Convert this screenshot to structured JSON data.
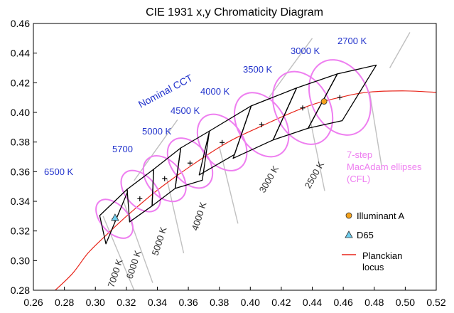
{
  "chart_data": {
    "type": "scatter",
    "title": "CIE 1931  x,y Chromaticity Diagram",
    "xlabel": "",
    "ylabel": "",
    "xlim": [
      0.26,
      0.52
    ],
    "ylim": [
      0.28,
      0.46
    ],
    "xticks": [
      "0.26",
      "0.28",
      "0.30",
      "0.32",
      "0.34",
      "0.36",
      "0.38",
      "0.40",
      "0.42",
      "0.44",
      "0.46",
      "0.48",
      "0.50",
      "0.52"
    ],
    "yticks": [
      "0.28",
      "0.30",
      "0.32",
      "0.34",
      "0.36",
      "0.38",
      "0.40",
      "0.42",
      "0.44",
      "0.46"
    ],
    "grid": false,
    "colors": {
      "frame": "#000000",
      "quadrangle": "#000000",
      "ellipse": "#ee7ef0",
      "planck": "#e8251a",
      "isotherm": "#c0c0c0",
      "label_blue": "#2233cc",
      "illuminant_a": "#f4a21c",
      "d65": "#6fd0f0"
    },
    "planckian_locus": [
      {
        "x": 0.2725,
        "y": 0.2785
      },
      {
        "x": 0.285,
        "y": 0.291
      },
      {
        "x": 0.2952,
        "y": 0.305
      },
      {
        "x": 0.3064,
        "y": 0.3166
      },
      {
        "x": 0.3221,
        "y": 0.3318
      },
      {
        "x": 0.3451,
        "y": 0.3516
      },
      {
        "x": 0.3805,
        "y": 0.3768
      },
      {
        "x": 0.405,
        "y": 0.3897
      },
      {
        "x": 0.4369,
        "y": 0.4041
      },
      {
        "x": 0.4599,
        "y": 0.4106
      },
      {
        "x": 0.477,
        "y": 0.4137
      },
      {
        "x": 0.5,
        "y": 0.4145
      },
      {
        "x": 0.52,
        "y": 0.4135
      }
    ],
    "nominal_cct": [
      {
        "label": "6500 K",
        "x": 0.3123,
        "y": 0.3282
      },
      {
        "label": "5700",
        "x": 0.3287,
        "y": 0.3417
      },
      {
        "label": "5000 K",
        "x": 0.3447,
        "y": 0.3553
      },
      {
        "label": "4500 K",
        "x": 0.3611,
        "y": 0.3658
      },
      {
        "label": "4000 K",
        "x": 0.3818,
        "y": 0.3797
      },
      {
        "label": "3500 K",
        "x": 0.4073,
        "y": 0.3917
      },
      {
        "label": "3000 K",
        "x": 0.4338,
        "y": 0.403
      },
      {
        "label": "2700 K",
        "x": 0.4578,
        "y": 0.4101
      }
    ],
    "quadrangles": [
      [
        [
          0.3028,
          0.3304
        ],
        [
          0.3205,
          0.3481
        ],
        [
          0.3207,
          0.3462
        ],
        [
          0.3068,
          0.3113
        ]
      ],
      [
        [
          0.3205,
          0.3481
        ],
        [
          0.3376,
          0.3616
        ],
        [
          0.3366,
          0.3369
        ],
        [
          0.3221,
          0.3261
        ]
      ],
      [
        [
          0.3376,
          0.3616
        ],
        [
          0.3551,
          0.376
        ],
        [
          0.3515,
          0.3487
        ],
        [
          0.3366,
          0.3369
        ]
      ],
      [
        [
          0.3551,
          0.376
        ],
        [
          0.3736,
          0.3874
        ],
        [
          0.369,
          0.3542
        ],
        [
          0.3515,
          0.3487
        ]
      ],
      [
        [
          0.3736,
          0.3874
        ],
        [
          0.4006,
          0.4044
        ],
        [
          0.3898,
          0.3716
        ],
        [
          0.367,
          0.3578
        ]
      ],
      [
        [
          0.4006,
          0.4044
        ],
        [
          0.4299,
          0.4165
        ],
        [
          0.4147,
          0.3814
        ],
        [
          0.3889,
          0.369
        ]
      ],
      [
        [
          0.4299,
          0.4165
        ],
        [
          0.4562,
          0.426
        ],
        [
          0.4373,
          0.3893
        ],
        [
          0.4147,
          0.3814
        ]
      ],
      [
        [
          0.4562,
          0.426
        ],
        [
          0.4813,
          0.4319
        ],
        [
          0.4593,
          0.3944
        ],
        [
          0.4373,
          0.3893
        ]
      ]
    ],
    "ellipses": [
      {
        "cx": 0.3123,
        "cy": 0.3282,
        "rx": 0.0088,
        "ry": 0.0155,
        "rot": -42
      },
      {
        "cx": 0.3293,
        "cy": 0.3469,
        "rx": 0.0098,
        "ry": 0.0162,
        "rot": -42
      },
      {
        "cx": 0.3447,
        "cy": 0.3553,
        "rx": 0.0112,
        "ry": 0.0175,
        "rot": -40
      },
      {
        "cx": 0.3611,
        "cy": 0.3658,
        "rx": 0.0118,
        "ry": 0.019,
        "rot": -38
      },
      {
        "cx": 0.3818,
        "cy": 0.3797,
        "rx": 0.0135,
        "ry": 0.021,
        "rot": -35
      },
      {
        "cx": 0.4073,
        "cy": 0.3917,
        "rx": 0.0152,
        "ry": 0.0235,
        "rot": -32
      },
      {
        "cx": 0.4338,
        "cy": 0.403,
        "rx": 0.0175,
        "ry": 0.026,
        "rot": -28
      },
      {
        "cx": 0.4578,
        "cy": 0.4101,
        "rx": 0.0185,
        "ry": 0.0265,
        "rot": -25
      }
    ],
    "isotherm_lines": [
      {
        "label": "7000 K",
        "x1": 0.305,
        "y1": 0.33,
        "x2": 0.325,
        "y2": 0.28
      },
      {
        "label": "6000 K",
        "x1": 0.318,
        "y1": 0.3405,
        "x2": 0.337,
        "y2": 0.285
      },
      {
        "label": "5000 K",
        "x1": 0.346,
        "y1": 0.3558,
        "x2": 0.357,
        "y2": 0.305
      },
      {
        "label": "4000 K",
        "x1": 0.38,
        "y1": 0.3768,
        "x2": 0.392,
        "y2": 0.325
      },
      {
        "label": "3000 K",
        "x1": 0.4369,
        "y1": 0.4041,
        "x2": 0.448,
        "y2": 0.347
      },
      {
        "label": "2500 K",
        "x1": 0.477,
        "y1": 0.4137,
        "x2": 0.485,
        "y2": 0.362
      }
    ],
    "isotherm_upper_lines": [
      {
        "x1": 0.325,
        "y1": 0.354,
        "x2": 0.353,
        "y2": 0.395
      },
      {
        "x1": 0.412,
        "y1": 0.41,
        "x2": 0.44,
        "y2": 0.45
      },
      {
        "x1": 0.49,
        "y1": 0.43,
        "x2": 0.503,
        "y2": 0.454
      }
    ],
    "illuminant_a": {
      "x": 0.4476,
      "y": 0.4074
    },
    "d65": {
      "x": 0.3127,
      "y": 0.329
    },
    "labels": {
      "nominal_cct": "Nominal CCT",
      "macadam_line1": "7-step",
      "macadam_line2": "MacAdam ellipses",
      "macadam_line3": "(CFL)"
    },
    "legend": {
      "illuminant_a": "Illuminant A",
      "d65": "D65",
      "planck_line1": "Planckian",
      "planck_line2": "locus"
    }
  }
}
